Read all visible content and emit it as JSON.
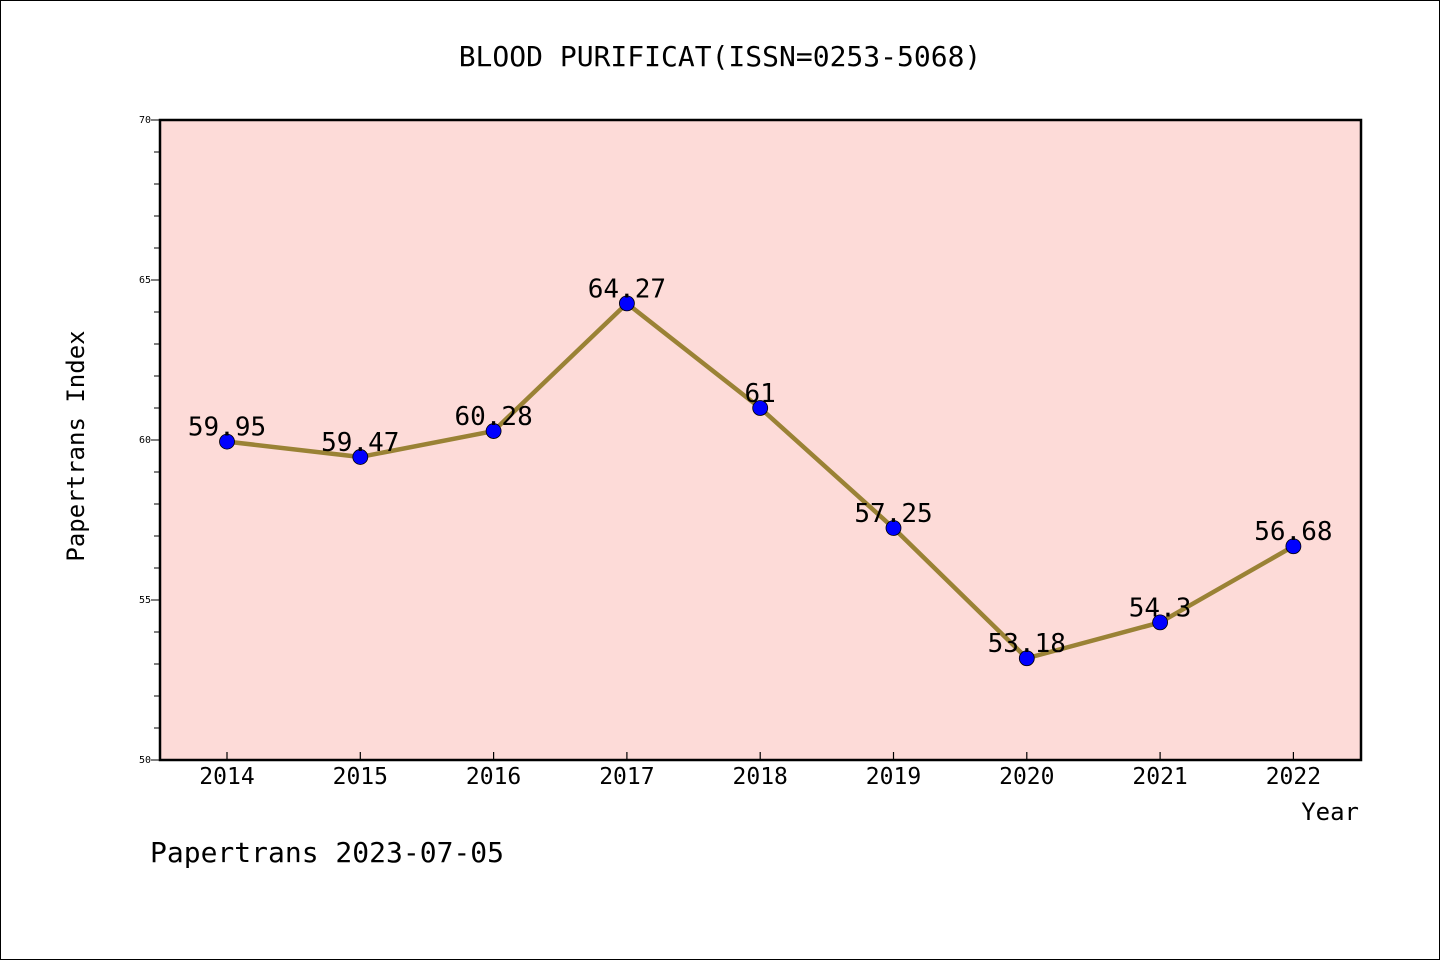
{
  "footer": "Papertrans 2023-07-05",
  "chart_data": {
    "type": "line",
    "title": "BLOOD PURIFICAT(ISSN=0253-5068)",
    "xlabel": "Year",
    "ylabel": "Papertrans Index",
    "categories": [
      "2014",
      "2015",
      "2016",
      "2017",
      "2018",
      "2019",
      "2020",
      "2021",
      "2022"
    ],
    "values": [
      59.95,
      59.47,
      60.28,
      64.27,
      61,
      57.25,
      53.18,
      54.3,
      56.68
    ],
    "data_labels": [
      "59.95",
      "59.47",
      "60.28",
      "64.27",
      "61",
      "57.25",
      "53.18",
      "54.3",
      "56.68"
    ],
    "ylim": [
      50,
      70
    ],
    "y_major_ticks": [
      50,
      55,
      60,
      65,
      70
    ],
    "y_tick_labels": [
      "50",
      "55",
      "60",
      "65",
      "70"
    ],
    "y_minor_step": 1,
    "grid": false,
    "legend": "none",
    "colors": {
      "plot_background": "#fddbd8",
      "line": "#9a8235",
      "marker": "#0000ff",
      "axis": "#000000"
    }
  }
}
